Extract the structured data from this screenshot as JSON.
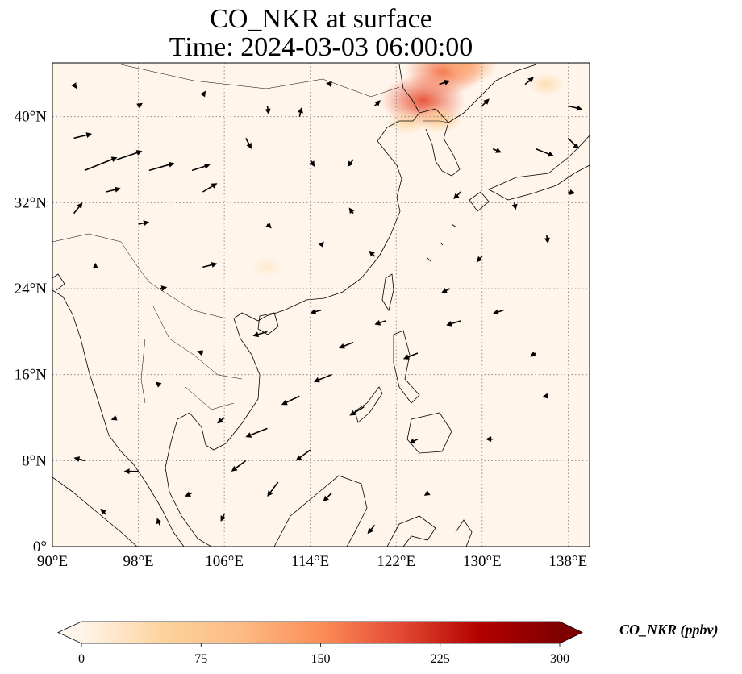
{
  "title": {
    "line1": "CO_NKR at surface",
    "line2": "Time: 2024-03-03 06:00:00"
  },
  "map": {
    "lon_range": [
      90,
      140
    ],
    "lat_range": [
      0,
      45
    ],
    "lon_ticks": [
      {
        "value": 90,
        "label": "90°E"
      },
      {
        "value": 98,
        "label": "98°E"
      },
      {
        "value": 106,
        "label": "106°E"
      },
      {
        "value": 114,
        "label": "114°E"
      },
      {
        "value": 122,
        "label": "122°E"
      },
      {
        "value": 130,
        "label": "130°E"
      },
      {
        "value": 138,
        "label": "138°E"
      }
    ],
    "lat_ticks": [
      {
        "value": 0,
        "label": "0°"
      },
      {
        "value": 8,
        "label": "8°N"
      },
      {
        "value": 16,
        "label": "16°N"
      },
      {
        "value": 24,
        "label": "24°N"
      },
      {
        "value": 32,
        "label": "32°N"
      },
      {
        "value": 40,
        "label": "40°N"
      }
    ],
    "gridlines": "dotted",
    "background_color": "#fff5eb",
    "coastline_color": "#000000",
    "vector_color": "#000000"
  },
  "colorbar": {
    "label": "CO_NKR (ppbv)",
    "min": 0,
    "max": 300,
    "extend": "both",
    "colormap": "Oranges-Reds",
    "colors": [
      "#fff5eb",
      "#fdd49e",
      "#fdbb84",
      "#fc8d59",
      "#e34a33",
      "#b30000",
      "#7f0000"
    ],
    "ticks": [
      {
        "value": 0,
        "label": "0"
      },
      {
        "value": 75,
        "label": "75"
      },
      {
        "value": 150,
        "label": "150"
      },
      {
        "value": 225,
        "label": "225"
      },
      {
        "value": 300,
        "label": "300"
      }
    ]
  },
  "hotspots": [
    {
      "lon": 124.5,
      "lat": 41.5,
      "value": 190
    },
    {
      "lon": 126.5,
      "lat": 44.2,
      "value": 170
    },
    {
      "lon": 128.5,
      "lat": 44.8,
      "value": 120
    },
    {
      "lon": 126.0,
      "lat": 39.8,
      "value": 70
    },
    {
      "lon": 123.0,
      "lat": 39.5,
      "value": 45
    },
    {
      "lon": 136.0,
      "lat": 43.0,
      "value": 35
    },
    {
      "lon": 110.0,
      "lat": 26.0,
      "value": 18
    }
  ],
  "wind_vectors": [
    {
      "lon": 92,
      "lat": 38,
      "u": 2.5,
      "v": 0.6
    },
    {
      "lon": 93,
      "lat": 35,
      "u": 4.5,
      "v": 1.8
    },
    {
      "lon": 96,
      "lat": 36,
      "u": 3.5,
      "v": 1.2
    },
    {
      "lon": 99,
      "lat": 35,
      "u": 3.5,
      "v": 1.0
    },
    {
      "lon": 103,
      "lat": 35,
      "u": 2.5,
      "v": 0.8
    },
    {
      "lon": 104,
      "lat": 33,
      "u": 2.0,
      "v": 1.2
    },
    {
      "lon": 95,
      "lat": 33,
      "u": 2.0,
      "v": 0.5
    },
    {
      "lon": 92,
      "lat": 31,
      "u": 1.2,
      "v": 1.5
    },
    {
      "lon": 98,
      "lat": 30,
      "u": 1.5,
      "v": 0.3
    },
    {
      "lon": 104,
      "lat": 26,
      "u": 2.0,
      "v": 0.5
    },
    {
      "lon": 100,
      "lat": 24,
      "u": 1.0,
      "v": 0.2
    },
    {
      "lon": 108,
      "lat": 38,
      "u": 0.8,
      "v": -1.5
    },
    {
      "lon": 110,
      "lat": 41,
      "u": 0.2,
      "v": -1.2
    },
    {
      "lon": 113,
      "lat": 40,
      "u": 0.3,
      "v": 1.3
    },
    {
      "lon": 114,
      "lat": 36,
      "u": 0.6,
      "v": -1.0
    },
    {
      "lon": 118,
      "lat": 36,
      "u": -0.8,
      "v": -1.0
    },
    {
      "lon": 118,
      "lat": 31,
      "u": -0.6,
      "v": 0.8
    },
    {
      "lon": 115,
      "lat": 28,
      "u": 0.4,
      "v": 0.6
    },
    {
      "lon": 110,
      "lat": 30,
      "u": 0.6,
      "v": -0.6
    },
    {
      "lon": 120,
      "lat": 27,
      "u": -0.8,
      "v": 0.8
    },
    {
      "lon": 120,
      "lat": 41,
      "u": 0.8,
      "v": 0.8
    },
    {
      "lon": 126,
      "lat": 43,
      "u": 1.5,
      "v": 0.5
    },
    {
      "lon": 130,
      "lat": 41,
      "u": 1.0,
      "v": 1.0
    },
    {
      "lon": 134,
      "lat": 43,
      "u": 1.2,
      "v": 1.0
    },
    {
      "lon": 138,
      "lat": 41,
      "u": 2.0,
      "v": -0.5
    },
    {
      "lon": 138,
      "lat": 38,
      "u": 1.5,
      "v": -1.5
    },
    {
      "lon": 135,
      "lat": 37,
      "u": 2.5,
      "v": -1.0
    },
    {
      "lon": 131,
      "lat": 37,
      "u": 1.2,
      "v": -0.5
    },
    {
      "lon": 128,
      "lat": 33,
      "u": -1.0,
      "v": -1.0
    },
    {
      "lon": 133,
      "lat": 32,
      "u": 0.2,
      "v": -1.0
    },
    {
      "lon": 136,
      "lat": 29,
      "u": 0.2,
      "v": -1.2
    },
    {
      "lon": 130,
      "lat": 27,
      "u": -0.8,
      "v": -0.8
    },
    {
      "lon": 127,
      "lat": 24,
      "u": -1.2,
      "v": -0.6
    },
    {
      "lon": 132,
      "lat": 22,
      "u": -1.5,
      "v": -0.5
    },
    {
      "lon": 128,
      "lat": 21,
      "u": -2.0,
      "v": -0.6
    },
    {
      "lon": 124,
      "lat": 18,
      "u": -2.0,
      "v": -0.8
    },
    {
      "lon": 121,
      "lat": 21,
      "u": -1.5,
      "v": -0.5
    },
    {
      "lon": 118,
      "lat": 19,
      "u": -2.0,
      "v": -0.8
    },
    {
      "lon": 116,
      "lat": 16,
      "u": -2.5,
      "v": -1.0
    },
    {
      "lon": 119,
      "lat": 13,
      "u": -2.0,
      "v": -1.2
    },
    {
      "lon": 113,
      "lat": 14,
      "u": -2.5,
      "v": -1.2
    },
    {
      "lon": 110,
      "lat": 11,
      "u": -3.0,
      "v": -1.2
    },
    {
      "lon": 114,
      "lat": 9,
      "u": -2.0,
      "v": -1.5
    },
    {
      "lon": 111,
      "lat": 6,
      "u": -1.5,
      "v": -2.0
    },
    {
      "lon": 116,
      "lat": 5,
      "u": -1.2,
      "v": -1.2
    },
    {
      "lon": 108,
      "lat": 8,
      "u": -2.0,
      "v": -1.5
    },
    {
      "lon": 106,
      "lat": 12,
      "u": -1.0,
      "v": -0.8
    },
    {
      "lon": 110,
      "lat": 20,
      "u": -2.0,
      "v": -0.6
    },
    {
      "lon": 115,
      "lat": 22,
      "u": -1.5,
      "v": -0.4
    },
    {
      "lon": 104,
      "lat": 18,
      "u": -0.8,
      "v": 0.3
    },
    {
      "lon": 100,
      "lat": 15,
      "u": -0.6,
      "v": 0.5
    },
    {
      "lon": 96,
      "lat": 12,
      "u": -0.8,
      "v": -0.3
    },
    {
      "lon": 93,
      "lat": 8,
      "u": -1.5,
      "v": 0.4
    },
    {
      "lon": 98,
      "lat": 7,
      "u": -2.0,
      "v": 0.0
    },
    {
      "lon": 103,
      "lat": 5,
      "u": -1.0,
      "v": -0.5
    },
    {
      "lon": 95,
      "lat": 3,
      "u": -0.8,
      "v": 0.8
    },
    {
      "lon": 100,
      "lat": 2,
      "u": -0.4,
      "v": 1.0
    },
    {
      "lon": 106,
      "lat": 3,
      "u": -0.5,
      "v": -1.0
    },
    {
      "lon": 120,
      "lat": 2,
      "u": -1.0,
      "v": -1.2
    },
    {
      "lon": 125,
      "lat": 5,
      "u": -0.6,
      "v": -0.4
    },
    {
      "lon": 131,
      "lat": 10,
      "u": -1.0,
      "v": 0.0
    },
    {
      "lon": 135,
      "lat": 18,
      "u": -0.8,
      "v": -0.5
    },
    {
      "lon": 136,
      "lat": 14,
      "u": -0.6,
      "v": -0.1
    },
    {
      "lon": 124,
      "lat": 10,
      "u": -1.2,
      "v": -0.6
    },
    {
      "lon": 138,
      "lat": 33,
      "u": 1.0,
      "v": -0.2
    },
    {
      "lon": 92,
      "lat": 43,
      "u": 0.4,
      "v": -0.6
    },
    {
      "lon": 98,
      "lat": 41,
      "u": 0.6,
      "v": 0.4
    },
    {
      "lon": 104,
      "lat": 42,
      "u": 0.4,
      "v": 0.6
    },
    {
      "lon": 116,
      "lat": 43,
      "u": -0.8,
      "v": 0.2
    },
    {
      "lon": 94,
      "lat": 26,
      "u": 0.0,
      "v": 0.6
    }
  ]
}
